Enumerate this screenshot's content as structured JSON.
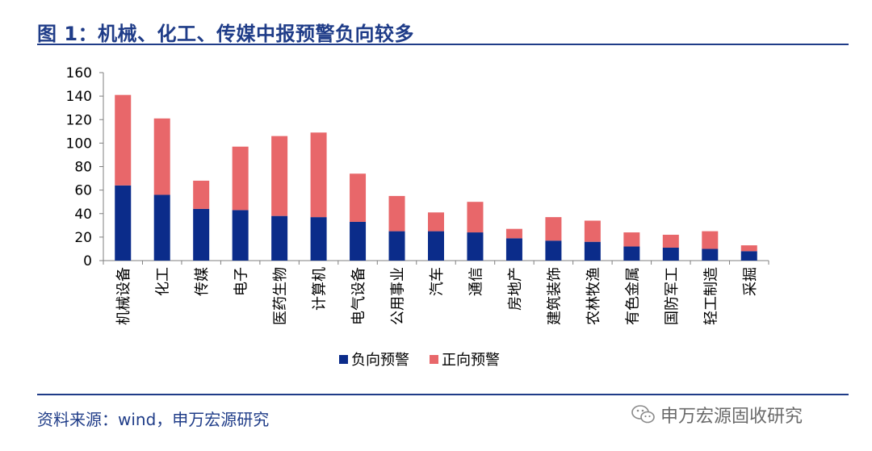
{
  "header": {
    "title": "图 1：机械、化工、传媒中报预警负向较多"
  },
  "footer": {
    "source": "资料来源：wind，申万宏源研究"
  },
  "watermark": {
    "text": "申万宏源固收研究",
    "icon": "wechat-icon"
  },
  "chart_data": {
    "type": "bar",
    "stacked": true,
    "categories": [
      "机械设备",
      "化工",
      "传媒",
      "电子",
      "医药生物",
      "计算机",
      "电气设备",
      "公用事业",
      "汽车",
      "通信",
      "房地产",
      "建筑装饰",
      "农林牧渔",
      "有色金属",
      "国防军工",
      "轻工制造",
      "采掘"
    ],
    "series": [
      {
        "name": "负向预警",
        "color": "#0b2c8a",
        "values": [
          64,
          56,
          44,
          43,
          38,
          37,
          33,
          25,
          25,
          24,
          19,
          17,
          16,
          12,
          11,
          10,
          8
        ]
      },
      {
        "name": "正向预警",
        "color": "#e8676a",
        "values": [
          77,
          65,
          24,
          54,
          68,
          72,
          41,
          30,
          16,
          26,
          8,
          20,
          18,
          12,
          11,
          15,
          5
        ]
      }
    ],
    "ylim": [
      0,
      160
    ],
    "yticks": [
      0,
      20,
      40,
      60,
      80,
      100,
      120,
      140,
      160
    ],
    "legend_position": "bottom",
    "grid": false
  }
}
